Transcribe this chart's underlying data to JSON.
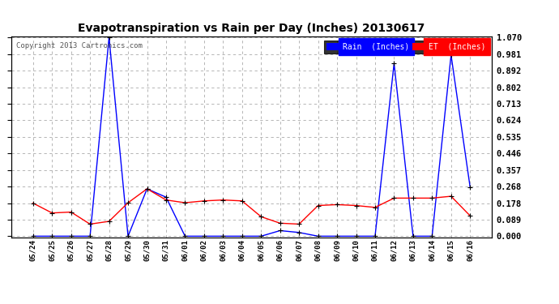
{
  "title": "Evapotranspiration vs Rain per Day (Inches) 20130617",
  "copyright": "Copyright 2013 Cartronics.com",
  "background_color": "#ffffff",
  "grid_color": "#aaaaaa",
  "x_labels": [
    "05/24",
    "05/25",
    "05/26",
    "05/27",
    "05/28",
    "05/29",
    "05/30",
    "05/31",
    "06/01",
    "06/02",
    "06/03",
    "06/04",
    "06/05",
    "06/06",
    "06/07",
    "06/08",
    "06/09",
    "06/10",
    "06/11",
    "06/12",
    "06/13",
    "06/14",
    "06/15",
    "06/16"
  ],
  "rain_values": [
    0.0,
    0.0,
    0.0,
    0.0,
    1.07,
    0.0,
    0.255,
    0.21,
    0.0,
    0.0,
    0.0,
    0.0,
    0.0,
    0.03,
    0.02,
    0.0,
    0.0,
    0.0,
    0.0,
    0.93,
    0.0,
    0.0,
    0.975,
    0.265
  ],
  "et_values": [
    0.178,
    0.125,
    0.13,
    0.065,
    0.08,
    0.18,
    0.255,
    0.195,
    0.18,
    0.19,
    0.195,
    0.19,
    0.105,
    0.07,
    0.065,
    0.165,
    0.17,
    0.165,
    0.155,
    0.205,
    0.205,
    0.205,
    0.215,
    0.11
  ],
  "rain_color": "#0000ff",
  "et_color": "#ff0000",
  "marker_color": "#000000",
  "y_ticks": [
    0.0,
    0.089,
    0.178,
    0.268,
    0.357,
    0.446,
    0.535,
    0.624,
    0.713,
    0.802,
    0.892,
    0.981,
    1.07
  ],
  "ylim": [
    -0.005,
    1.075
  ],
  "legend_rain_label": "Rain  (Inches)",
  "legend_et_label": "ET  (Inches)"
}
